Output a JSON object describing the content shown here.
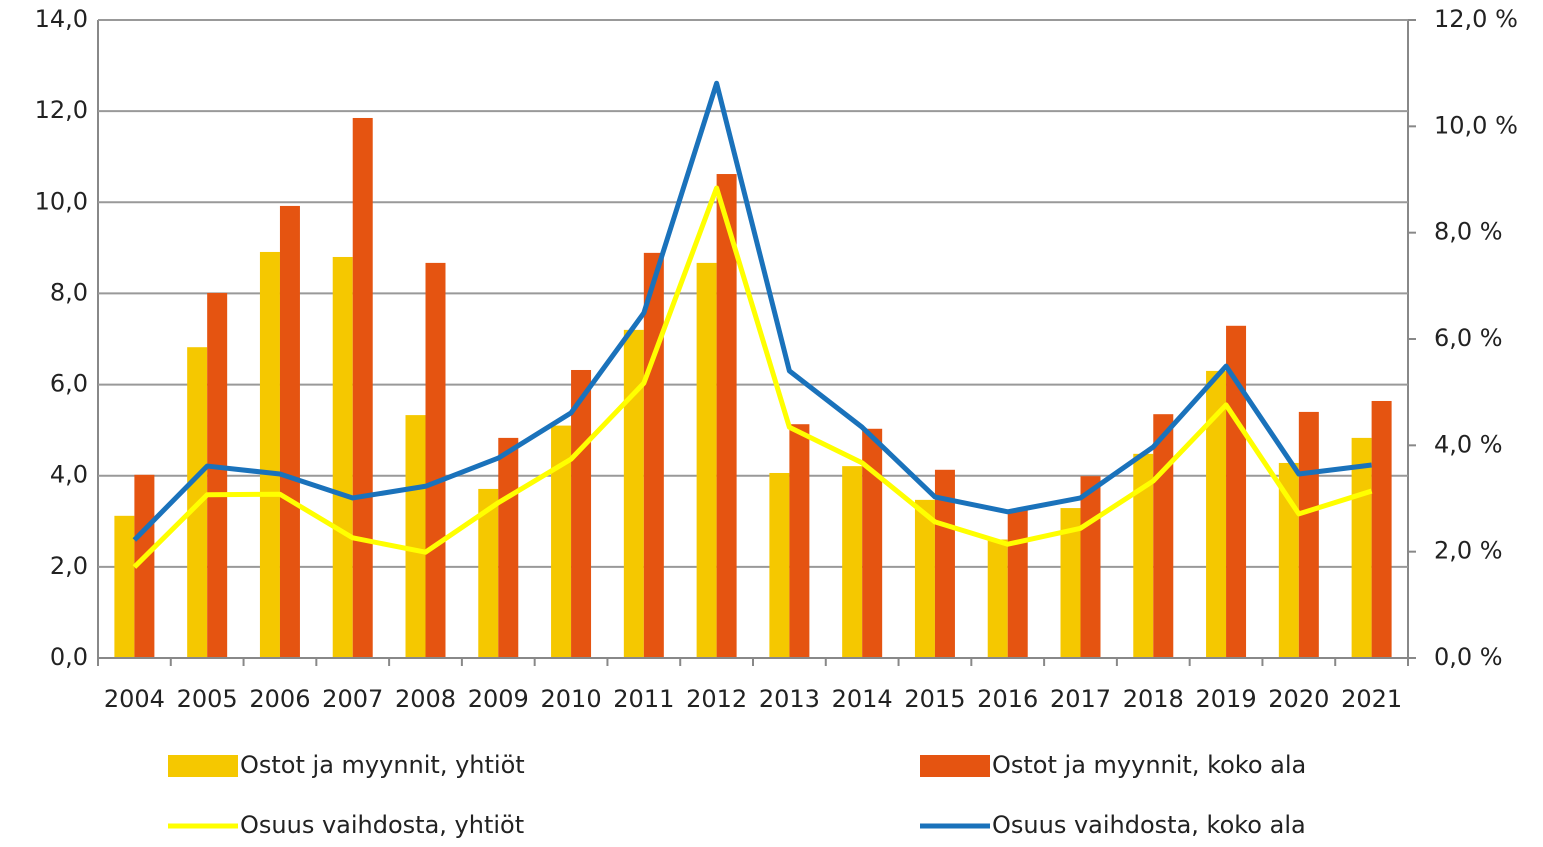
{
  "chart_data": {
    "type": "combo",
    "categories": [
      "2004",
      "2005",
      "2006",
      "2007",
      "2008",
      "2009",
      "2010",
      "2011",
      "2012",
      "2013",
      "2014",
      "2015",
      "2016",
      "2017",
      "2018",
      "2019",
      "2020",
      "2021"
    ],
    "series": [
      {
        "name": "Ostot ja myynnit, yhtiöt",
        "type": "bar",
        "color": "#f5c800",
        "values": [
          3.12,
          6.82,
          8.91,
          8.8,
          5.33,
          3.71,
          5.1,
          7.2,
          8.67,
          4.06,
          4.21,
          3.47,
          2.6,
          3.29,
          4.48,
          6.3,
          4.28,
          4.83
        ]
      },
      {
        "name": "Ostot ja myynnit, koko ala",
        "type": "bar",
        "color": "#e55411",
        "values": [
          4.02,
          8.01,
          9.92,
          11.85,
          8.67,
          4.83,
          6.32,
          8.89,
          10.62,
          5.13,
          5.03,
          4.13,
          3.25,
          3.99,
          5.35,
          7.29,
          5.4,
          5.64
        ]
      },
      {
        "name": "Osuus vaihdosta, yhtiöt",
        "type": "line",
        "axis": "y2",
        "color": "#ffff00",
        "values": [
          1.71,
          3.07,
          3.08,
          2.26,
          1.99,
          2.92,
          3.74,
          5.17,
          8.84,
          4.34,
          3.67,
          2.56,
          2.14,
          2.44,
          3.33,
          4.76,
          2.71,
          3.14
        ]
      },
      {
        "name": "Osuus vaihdosta, koko ala",
        "type": "line",
        "axis": "y2",
        "color": "#1a72bb",
        "values": [
          2.22,
          3.61,
          3.46,
          3.01,
          3.23,
          3.76,
          4.61,
          6.49,
          10.81,
          5.4,
          4.34,
          3.03,
          2.75,
          3.01,
          3.97,
          5.49,
          3.46,
          3.63
        ]
      }
    ],
    "ylim": [
      0,
      14
    ],
    "yticks": [
      {
        "value": 0,
        "label": "0,0"
      },
      {
        "value": 2,
        "label": "2,0"
      },
      {
        "value": 4,
        "label": "4,0"
      },
      {
        "value": 6,
        "label": "6,0"
      },
      {
        "value": 8,
        "label": "8,0"
      },
      {
        "value": 10,
        "label": "10,0"
      },
      {
        "value": 12,
        "label": "12,0"
      },
      {
        "value": 14,
        "label": "14,0"
      }
    ],
    "y2lim": [
      0,
      12
    ],
    "y2ticks": [
      {
        "value": 0,
        "label": "0,0 %"
      },
      {
        "value": 2,
        "label": "2,0 %"
      },
      {
        "value": 4,
        "label": "4,0 %"
      },
      {
        "value": 6,
        "label": "6,0 %"
      },
      {
        "value": 8,
        "label": "8,0 %"
      },
      {
        "value": 10,
        "label": "10,0 %"
      },
      {
        "value": 12,
        "label": "12,0 %"
      }
    ],
    "grid": true,
    "legend": "bottom"
  }
}
